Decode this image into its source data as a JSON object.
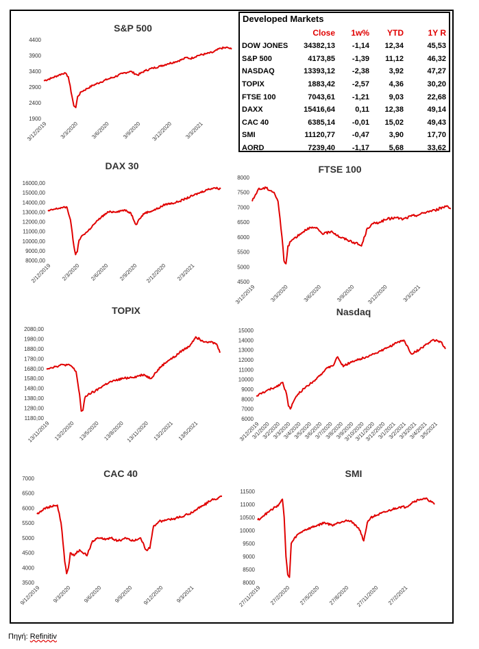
{
  "table": {
    "title": "Developed Markets",
    "headers": [
      "Close",
      "1w%",
      "YTD",
      "1Y R"
    ],
    "rows": [
      {
        "name": "DOW JONES",
        "close": "34382,13",
        "w1": "-1,14",
        "ytd": "12,34",
        "y1": "45,53"
      },
      {
        "name": "S&P 500",
        "close": "4173,85",
        "w1": "-1,39",
        "ytd": "11,12",
        "y1": "46,32"
      },
      {
        "name": "NASDAQ",
        "close": "13393,12",
        "w1": "-2,38",
        "ytd": "3,92",
        "y1": "47,27"
      },
      {
        "name": "TOPIX",
        "close": "1883,42",
        "w1": "-2,57",
        "ytd": "4,36",
        "y1": "30,20"
      },
      {
        "name": "FTSE 100",
        "close": "7043,61",
        "w1": "-1,21",
        "ytd": "9,03",
        "y1": "22,68"
      },
      {
        "name": "DAXX",
        "close": "15416,64",
        "w1": "0,11",
        "ytd": "12,38",
        "y1": "49,14"
      },
      {
        "name": "CAC 40",
        "close": "6385,14",
        "w1": "-0,01",
        "ytd": "15,02",
        "y1": "49,43"
      },
      {
        "name": "SMI",
        "close": "11120,77",
        "w1": "-0,47",
        "ytd": "3,90",
        "y1": "17,70"
      },
      {
        "name": "AORD",
        "close": "7239,40",
        "w1": "-1,17",
        "ytd": "5,68",
        "y1": "33,62"
      }
    ]
  },
  "source": {
    "prefix": "Πηγή: ",
    "name": "Refinitiv"
  },
  "colors": {
    "line": "#e00000",
    "header": "#e00000"
  },
  "chart_data": [
    {
      "id": "sp500",
      "type": "line",
      "title": "S&P 500",
      "ylim": [
        1900,
        4400
      ],
      "yticks": [
        "1900",
        "2400",
        "2900",
        "3400",
        "3900",
        "4400"
      ],
      "xticks": [
        "3/12/2019",
        "3/3/2020",
        "3/6/2020",
        "3/9/2020",
        "3/12/2020",
        "3/3/2021"
      ],
      "x": [
        0,
        4,
        8,
        11,
        13,
        15,
        16,
        17,
        18,
        20,
        23,
        26,
        30,
        34,
        38,
        42,
        46,
        50,
        54,
        58,
        62,
        66,
        70,
        74,
        76,
        78,
        82,
        86,
        90,
        94,
        98,
        100
      ],
      "values": [
        3100,
        3180,
        3280,
        3350,
        3230,
        2600,
        2300,
        2250,
        2600,
        2750,
        2850,
        2950,
        3050,
        3150,
        3230,
        3330,
        3400,
        3280,
        3420,
        3500,
        3560,
        3640,
        3700,
        3780,
        3840,
        3800,
        3900,
        3950,
        4000,
        4130,
        4150,
        4100
      ]
    },
    {
      "id": "dax",
      "type": "line",
      "title": "DAX 30",
      "ylim": [
        8000,
        16000
      ],
      "yticks": [
        "8000,00",
        "9000,00",
        "10000,00",
        "11000,00",
        "12000,00",
        "13000,00",
        "14000,00",
        "15000,00",
        "16000,00"
      ],
      "xticks": [
        "2/12/2019",
        "2/3/2020",
        "2/6/2020",
        "2/9/2020",
        "2/12/2020",
        "2/3/2021"
      ],
      "x": [
        0,
        4,
        8,
        11,
        13,
        15,
        16,
        17,
        18,
        20,
        23,
        27,
        31,
        35,
        40,
        44,
        48,
        51,
        53,
        56,
        60,
        64,
        68,
        72,
        76,
        80,
        84,
        88,
        92,
        96,
        100
      ],
      "values": [
        13100,
        13300,
        13450,
        13500,
        12200,
        9500,
        8600,
        8900,
        10100,
        10600,
        11000,
        11800,
        12500,
        13000,
        13050,
        13200,
        12900,
        11700,
        12300,
        12900,
        13100,
        13400,
        13800,
        13900,
        14100,
        14400,
        14700,
        15000,
        15300,
        15500,
        15400
      ]
    },
    {
      "id": "ftse",
      "type": "line",
      "title": "FTSE 100",
      "ylim": [
        4500,
        8000
      ],
      "yticks": [
        "4500",
        "5000",
        "5500",
        "6000",
        "6500",
        "7000",
        "7500",
        "8000"
      ],
      "xticks": [
        "3/12/2019",
        "3/3/2020",
        "3/6/2020",
        "3/9/2020",
        "3/12/2020",
        "3/3/2021"
      ],
      "x": [
        0,
        3,
        7,
        11,
        13,
        15,
        16,
        17,
        18,
        20,
        24,
        28,
        32,
        36,
        40,
        44,
        48,
        52,
        55,
        58,
        61,
        64,
        68,
        72,
        76,
        80,
        84,
        88,
        92,
        96,
        98,
        100
      ],
      "values": [
        7200,
        7600,
        7650,
        7500,
        7200,
        6000,
        5200,
        5100,
        5700,
        5900,
        6100,
        6300,
        6300,
        6100,
        6200,
        6000,
        5900,
        5800,
        5700,
        6300,
        6450,
        6500,
        6600,
        6650,
        6600,
        6700,
        6750,
        6850,
        6900,
        7000,
        7050,
        6950
      ]
    },
    {
      "id": "topix",
      "type": "line",
      "title": "TOPIX",
      "ylim": [
        1180,
        2080
      ],
      "yticks": [
        "1180,00",
        "1280,00",
        "1380,00",
        "1480,00",
        "1580,00",
        "1680,00",
        "1780,00",
        "1880,00",
        "1980,00",
        "2080,00"
      ],
      "xticks": [
        "13/11/2019",
        "13/2/2020",
        "13/5/2020",
        "13/8/2020",
        "13/11/2020",
        "13/2/2021",
        "13/5/2021"
      ],
      "x": [
        0,
        5,
        10,
        14,
        17,
        19,
        20,
        21,
        22,
        24,
        28,
        32,
        36,
        40,
        44,
        48,
        52,
        56,
        60,
        63,
        66,
        70,
        74,
        78,
        82,
        86,
        90,
        94,
        98,
        100
      ],
      "values": [
        1680,
        1700,
        1720,
        1710,
        1650,
        1420,
        1250,
        1260,
        1380,
        1420,
        1450,
        1500,
        1540,
        1560,
        1580,
        1590,
        1600,
        1620,
        1580,
        1640,
        1700,
        1760,
        1800,
        1860,
        1900,
        2000,
        1960,
        1950,
        1930,
        1840
      ]
    },
    {
      "id": "nasdaq",
      "type": "line",
      "title": "Nasdaq",
      "ylim": [
        6000,
        15000
      ],
      "yticks": [
        "6000",
        "7000",
        "8000",
        "9000",
        "10000",
        "11000",
        "12000",
        "13000",
        "14000",
        "15000"
      ],
      "xticks": [
        "3/12/2019",
        "3/1/2020",
        "3/2/2020",
        "3/3/2020",
        "3/4/2020",
        "3/5/2020",
        "3/6/2020",
        "3/7/2020",
        "3/8/2020",
        "3/9/2020",
        "3/10/2020",
        "3/11/2020",
        "3/12/2020",
        "3/1/2021",
        "3/2/2021",
        "3/3/2021",
        "3/4/2021",
        "3/5/2021"
      ],
      "x": [
        0,
        5,
        10,
        14,
        16,
        17,
        18,
        19,
        22,
        26,
        30,
        34,
        38,
        41,
        43,
        46,
        50,
        54,
        58,
        62,
        66,
        70,
        74,
        78,
        82,
        86,
        90,
        94,
        98,
        100
      ],
      "values": [
        8300,
        8800,
        9200,
        9700,
        8500,
        7300,
        7000,
        7500,
        8500,
        9200,
        9800,
        10500,
        11200,
        11500,
        12300,
        11300,
        11800,
        12000,
        12300,
        12600,
        12900,
        13300,
        13700,
        14000,
        12600,
        13000,
        13600,
        14000,
        13800,
        13100
      ]
    },
    {
      "id": "cac",
      "type": "line",
      "title": "CAC 40",
      "ylim": [
        3500,
        7000
      ],
      "yticks": [
        "3500",
        "4000",
        "4500",
        "5000",
        "5500",
        "6000",
        "6500",
        "7000"
      ],
      "xticks": [
        "9/12/2019",
        "9/3/2020",
        "9/6/2020",
        "9/9/2020",
        "9/12/2020",
        "9/3/2021"
      ],
      "x": [
        0,
        4,
        8,
        11,
        13,
        15,
        16,
        17,
        18,
        20,
        23,
        27,
        30,
        33,
        36,
        40,
        44,
        48,
        52,
        56,
        59,
        61,
        63,
        66,
        70,
        74,
        78,
        82,
        86,
        90,
        94,
        98,
        100
      ],
      "values": [
        5800,
        6000,
        6050,
        6100,
        5500,
        4200,
        3800,
        4000,
        4500,
        4400,
        4600,
        4400,
        4900,
        5000,
        4950,
        5000,
        4900,
        5000,
        4900,
        5000,
        4600,
        4650,
        5400,
        5550,
        5600,
        5650,
        5700,
        5800,
        5950,
        6100,
        6250,
        6350,
        6400
      ]
    },
    {
      "id": "smi",
      "type": "line",
      "title": "SMI",
      "ylim": [
        8000,
        11500
      ],
      "yticks": [
        "8000",
        "8500",
        "9000",
        "9500",
        "10000",
        "10500",
        "11000",
        "11500"
      ],
      "xticks": [
        "27/11/2019",
        "27/2/2020",
        "27/5/2020",
        "27/8/2020",
        "27/11/2020",
        "27/2/2021"
      ],
      "x": [
        0,
        4,
        8,
        12,
        14,
        15,
        16,
        17,
        18,
        19,
        22,
        26,
        30,
        34,
        38,
        42,
        46,
        50,
        54,
        58,
        60,
        62,
        64,
        68,
        72,
        76,
        80,
        84,
        88,
        92,
        96,
        100
      ],
      "values": [
        10400,
        10600,
        10800,
        11000,
        11200,
        10500,
        9000,
        8300,
        8200,
        9500,
        9800,
        10000,
        10100,
        10200,
        10300,
        10200,
        10300,
        10400,
        10300,
        10000,
        9600,
        10300,
        10500,
        10600,
        10700,
        10800,
        10900,
        10900,
        11100,
        11200,
        11200,
        11000
      ]
    }
  ]
}
